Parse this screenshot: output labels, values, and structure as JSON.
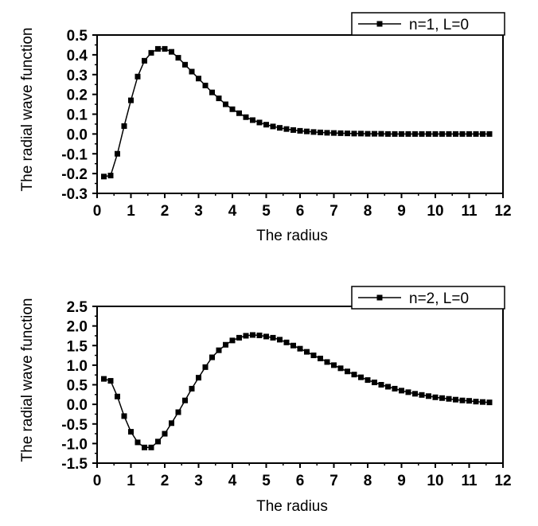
{
  "chart_data": [
    {
      "type": "line",
      "xlabel": "The radius",
      "ylabel": "The radial wave function",
      "xlim": [
        0,
        12
      ],
      "ylim": [
        -0.3,
        0.5
      ],
      "xticks": [
        "0",
        "1",
        "2",
        "3",
        "4",
        "5",
        "6",
        "7",
        "8",
        "9",
        "10",
        "11",
        "12"
      ],
      "yticks": [
        "-0.3",
        "-0.2",
        "-0.1",
        "0.0",
        "0.1",
        "0.2",
        "0.3",
        "0.4",
        "0.5"
      ],
      "legend_position": "top-right",
      "grid": false,
      "marker": "square",
      "color": "#000000",
      "series": [
        {
          "name": "n=1, L=0",
          "x": [
            0.2,
            0.4,
            0.6,
            0.8,
            1.0,
            1.2,
            1.4,
            1.6,
            1.8,
            2.0,
            2.2,
            2.4,
            2.6,
            2.8,
            3.0,
            3.2,
            3.4,
            3.6,
            3.8,
            4.0,
            4.2,
            4.4,
            4.6,
            4.8,
            5.0,
            5.2,
            5.4,
            5.6,
            5.8,
            6.0,
            6.2,
            6.4,
            6.6,
            6.8,
            7.0,
            7.2,
            7.4,
            7.6,
            7.8,
            8.0,
            8.2,
            8.4,
            8.6,
            8.8,
            9.0,
            9.2,
            9.4,
            9.6,
            9.8,
            10.0,
            10.2,
            10.4,
            10.6,
            10.8,
            11.0,
            11.2,
            11.4,
            11.6
          ],
          "values": [
            -0.215,
            -0.21,
            -0.1,
            0.04,
            0.17,
            0.29,
            0.37,
            0.41,
            0.43,
            0.43,
            0.415,
            0.385,
            0.35,
            0.315,
            0.28,
            0.245,
            0.21,
            0.18,
            0.15,
            0.125,
            0.105,
            0.085,
            0.07,
            0.058,
            0.047,
            0.038,
            0.031,
            0.025,
            0.02,
            0.016,
            0.013,
            0.01,
            0.008,
            0.006,
            0.005,
            0.004,
            0.003,
            0.002,
            0.002,
            0.001,
            0.001,
            0.001,
            0.0,
            0.0,
            0.0,
            0.0,
            0.0,
            0.0,
            0.0,
            0.0,
            0.0,
            0.0,
            0.0,
            0.0,
            0.0,
            0.0,
            0.0,
            0.0
          ]
        }
      ]
    },
    {
      "type": "line",
      "xlabel": "The radius",
      "ylabel": "The radial wave function",
      "xlim": [
        0,
        12
      ],
      "ylim": [
        -1.5,
        2.5
      ],
      "xticks": [
        "0",
        "1",
        "2",
        "3",
        "4",
        "5",
        "6",
        "7",
        "8",
        "9",
        "10",
        "11",
        "12"
      ],
      "yticks": [
        "-1.5",
        "-1.0",
        "-0.5",
        "0.0",
        "0.5",
        "1.0",
        "1.5",
        "2.0",
        "2.5"
      ],
      "legend_position": "top-right",
      "grid": false,
      "marker": "square",
      "color": "#000000",
      "series": [
        {
          "name": "n=2, L=0",
          "x": [
            0.2,
            0.4,
            0.6,
            0.8,
            1.0,
            1.2,
            1.4,
            1.6,
            1.8,
            2.0,
            2.2,
            2.4,
            2.6,
            2.8,
            3.0,
            3.2,
            3.4,
            3.6,
            3.8,
            4.0,
            4.2,
            4.4,
            4.6,
            4.8,
            5.0,
            5.2,
            5.4,
            5.6,
            5.8,
            6.0,
            6.2,
            6.4,
            6.6,
            6.8,
            7.0,
            7.2,
            7.4,
            7.6,
            7.8,
            8.0,
            8.2,
            8.4,
            8.6,
            8.8,
            9.0,
            9.2,
            9.4,
            9.6,
            9.8,
            10.0,
            10.2,
            10.4,
            10.6,
            10.8,
            11.0,
            11.2,
            11.4,
            11.6
          ],
          "values": [
            0.65,
            0.6,
            0.2,
            -0.3,
            -0.7,
            -0.97,
            -1.1,
            -1.1,
            -0.95,
            -0.75,
            -0.48,
            -0.2,
            0.1,
            0.4,
            0.68,
            0.95,
            1.2,
            1.38,
            1.52,
            1.63,
            1.7,
            1.75,
            1.77,
            1.76,
            1.73,
            1.7,
            1.65,
            1.58,
            1.5,
            1.42,
            1.34,
            1.25,
            1.17,
            1.08,
            1.0,
            0.92,
            0.84,
            0.76,
            0.69,
            0.62,
            0.56,
            0.5,
            0.45,
            0.4,
            0.35,
            0.31,
            0.27,
            0.24,
            0.21,
            0.18,
            0.16,
            0.14,
            0.12,
            0.1,
            0.09,
            0.07,
            0.06,
            0.05
          ]
        }
      ]
    }
  ]
}
